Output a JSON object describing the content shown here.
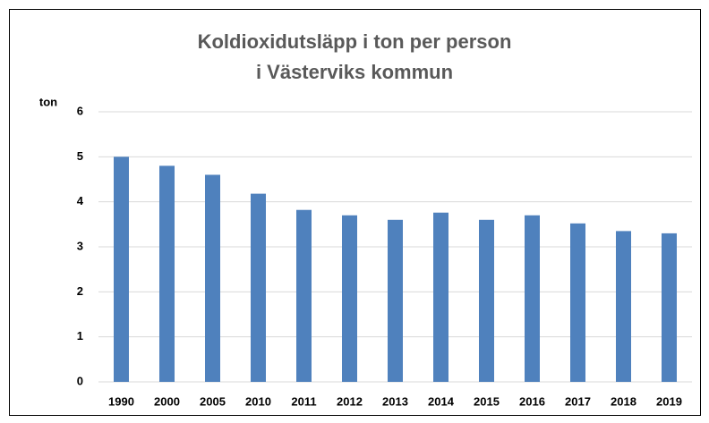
{
  "chart_data": {
    "type": "bar",
    "title": [
      "Koldioxidutsläpp i ton per person",
      "i Västerviks kommun"
    ],
    "y_label": "ton",
    "categories": [
      "1990",
      "2000",
      "2005",
      "2010",
      "2011",
      "2012",
      "2013",
      "2014",
      "2015",
      "2016",
      "2017",
      "2018",
      "2019"
    ],
    "values": [
      5.0,
      4.8,
      4.6,
      4.18,
      3.82,
      3.7,
      3.6,
      3.76,
      3.6,
      3.7,
      3.52,
      3.35,
      3.3
    ],
    "color": "#4f81bd",
    "ylim": [
      0,
      6
    ],
    "yticks": [
      0,
      1,
      2,
      3,
      4,
      5,
      6
    ],
    "grid": true
  }
}
